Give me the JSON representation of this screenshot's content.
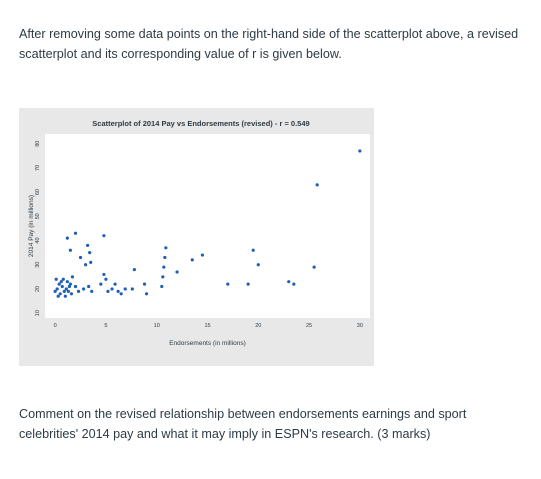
{
  "question": {
    "intro": "After removing some data points on the right-hand side of the scatterplot above, a revised scatterplot and its corresponding value of r is given below.",
    "prompt": "Comment on the revised relationship between endorsements earnings and sport celebrities' 2014 pay and what it may imply in ESPN's research. (3 marks)"
  },
  "colors": {
    "text": "#2d3b45",
    "plot_background": "#e8e8e8",
    "plot_area": "#ffffff",
    "point": "#1f5fb5"
  },
  "chart_data": {
    "type": "scatter",
    "title": "Scatterplot of 2014 Pay vs Endorsements (revised) - r = 0.549",
    "xlabel": "Endorsements (in millions)",
    "ylabel": "2014 Pay (in millions)",
    "xlim": [
      -1,
      31
    ],
    "ylim": [
      8,
      84
    ],
    "xticks": [
      0,
      5,
      10,
      15,
      20,
      25,
      30
    ],
    "yticks": [
      10,
      20,
      30,
      40,
      50,
      60,
      70,
      80
    ],
    "grid": false,
    "series": [
      {
        "points": [
          [
            0,
            19
          ],
          [
            0.2,
            20
          ],
          [
            0.4,
            22
          ],
          [
            0.5,
            18
          ],
          [
            0.7,
            21
          ],
          [
            0.8,
            24
          ],
          [
            1.0,
            17
          ],
          [
            1.1,
            20
          ],
          [
            1.2,
            23
          ],
          [
            1.3,
            19
          ],
          [
            1.5,
            22
          ],
          [
            1.6,
            18
          ],
          [
            1.7,
            25
          ],
          [
            0.3,
            17
          ],
          [
            0.6,
            23
          ],
          [
            0.9,
            19
          ],
          [
            1.4,
            21
          ],
          [
            0.1,
            24
          ],
          [
            2.0,
            21
          ],
          [
            2.3,
            19
          ],
          [
            2.8,
            20
          ],
          [
            3.3,
            21
          ],
          [
            3.6,
            19
          ],
          [
            1.2,
            41
          ],
          [
            2.0,
            43
          ],
          [
            1.5,
            36
          ],
          [
            2.5,
            33
          ],
          [
            3.0,
            30
          ],
          [
            3.2,
            38
          ],
          [
            3.4,
            35
          ],
          [
            3.5,
            31
          ],
          [
            4.8,
            42
          ],
          [
            4.5,
            22
          ],
          [
            4.8,
            26
          ],
          [
            5.0,
            24
          ],
          [
            5.2,
            19
          ],
          [
            5.6,
            20
          ],
          [
            5.9,
            22
          ],
          [
            6.2,
            19
          ],
          [
            6.5,
            18
          ],
          [
            6.9,
            20
          ],
          [
            7.6,
            20
          ],
          [
            7.8,
            28
          ],
          [
            8.8,
            22
          ],
          [
            9.0,
            18
          ],
          [
            10.5,
            21
          ],
          [
            10.6,
            25
          ],
          [
            10.7,
            29
          ],
          [
            10.8,
            33
          ],
          [
            10.9,
            37
          ],
          [
            12.0,
            27
          ],
          [
            13.5,
            32
          ],
          [
            14.5,
            34
          ],
          [
            17.0,
            22
          ],
          [
            19.0,
            22
          ],
          [
            19.5,
            36
          ],
          [
            20.0,
            30
          ],
          [
            23.0,
            23
          ],
          [
            23.5,
            22
          ],
          [
            25.5,
            29
          ],
          [
            25.8,
            63
          ],
          [
            30.0,
            77
          ]
        ]
      }
    ]
  }
}
